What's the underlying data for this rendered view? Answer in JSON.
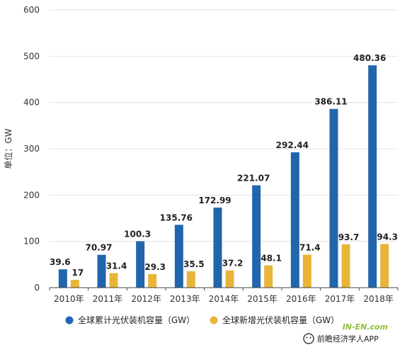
{
  "chart_data": {
    "type": "bar",
    "ylabel": "单位：GW",
    "ylim": [
      0,
      600
    ],
    "yticks": [
      0,
      100,
      200,
      300,
      400,
      500,
      600
    ],
    "grid": true,
    "legend_position": "bottom",
    "categories": [
      "2010年",
      "2011年",
      "2012年",
      "2013年",
      "2014年",
      "2015年",
      "2016年",
      "2017年",
      "2018年"
    ],
    "series": [
      {
        "name": "全球累计光伏装机容量（GW）",
        "color": "#2166ac",
        "values": [
          39.6,
          70.97,
          100.3,
          135.76,
          172.99,
          221.07,
          292.44,
          386.11,
          480.36
        ],
        "labels": [
          "39.6",
          "70.97",
          "100.3",
          "135.76",
          "172.99",
          "221.07",
          "292.44",
          "386.11",
          "480.36"
        ]
      },
      {
        "name": "全球新增光伏装机容量（GW）",
        "color": "#e8b53a",
        "values": [
          17,
          31.4,
          29.3,
          35.5,
          37.2,
          48.1,
          71.4,
          93.7,
          94.3
        ],
        "labels": [
          "17",
          "31.4",
          "29.3",
          "35.5",
          "37.2",
          "48.1",
          "71.4",
          "93.7",
          "94.3"
        ]
      }
    ]
  },
  "watermark": {
    "app_name": "前瞻经济学人APP",
    "site_text": "IN-EN.com"
  }
}
